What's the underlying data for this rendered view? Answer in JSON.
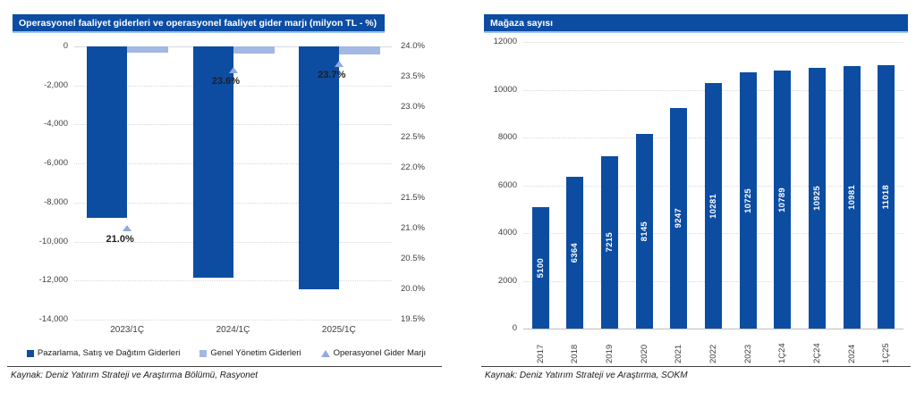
{
  "colors": {
    "primary_dark_blue": "#0C4DA2",
    "light_blue": "#A3B8E2",
    "marker_blue": "#8FAADC",
    "title_bar_bg": "#0C4DA2",
    "title_bar_underline": "#9DC3E6",
    "grid": "#D9D9D9",
    "axis_text": "#404040",
    "bar_label_text": "#FFFFFF"
  },
  "chart_data": [
    {
      "type": "bar",
      "title": "Operasyonel faaliyet giderleri ve operasyonel faaliyet gider marjı (milyon TL - %)",
      "source": "Kaynak: Deniz Yatırım Strateji ve Araştırma Bölümü, Rasyonet",
      "categories": [
        "2023/1Ç",
        "2024/1Ç",
        "2025/1Ç"
      ],
      "series": [
        {
          "name": "Pazarlama, Satış ve Dağıtım Giderleri",
          "kind": "bar",
          "axis": "left",
          "values": [
            -8800,
            -11850,
            -12450
          ]
        },
        {
          "name": "Genel Yönetim Giderleri",
          "kind": "bar",
          "axis": "left",
          "values": [
            -300,
            -380,
            -430
          ]
        },
        {
          "name": "Operasyonel Gider Marjı",
          "kind": "marker",
          "axis": "right",
          "values": [
            21.0,
            23.6,
            23.7
          ],
          "labels": [
            "21.0%",
            "23.6%",
            "23.7%"
          ]
        }
      ],
      "left_axis": {
        "min": -14000,
        "max": 0,
        "ticks": [
          "0",
          "-2,000",
          "-4,000",
          "-6,000",
          "-8,000",
          "-10,000",
          "-12,000",
          "-14,000"
        ]
      },
      "right_axis": {
        "min": 19.5,
        "max": 24.0,
        "ticks": [
          "24.0%",
          "23.5%",
          "23.0%",
          "22.5%",
          "22.0%",
          "21.5%",
          "21.0%",
          "20.5%",
          "20.0%",
          "19.5%"
        ]
      },
      "legend_position": "bottom",
      "grid": true
    },
    {
      "type": "bar",
      "title": "Mağaza sayısı",
      "source": "Kaynak: Deniz Yatırım Strateji ve Araştırma, SOKM",
      "categories": [
        "2017",
        "2018",
        "2019",
        "2020",
        "2021",
        "2022",
        "2023",
        "1Ç24",
        "2Ç24",
        "2024",
        "1Ç25"
      ],
      "values": [
        5100,
        6364,
        7215,
        8145,
        9247,
        10281,
        10725,
        10789,
        10925,
        10981,
        11018
      ],
      "y_axis": {
        "min": 0,
        "max": 12000,
        "ticks": [
          "12000",
          "10000",
          "8000",
          "6000",
          "4000",
          "2000",
          "0"
        ]
      },
      "grid": true,
      "legend_position": "none"
    }
  ]
}
